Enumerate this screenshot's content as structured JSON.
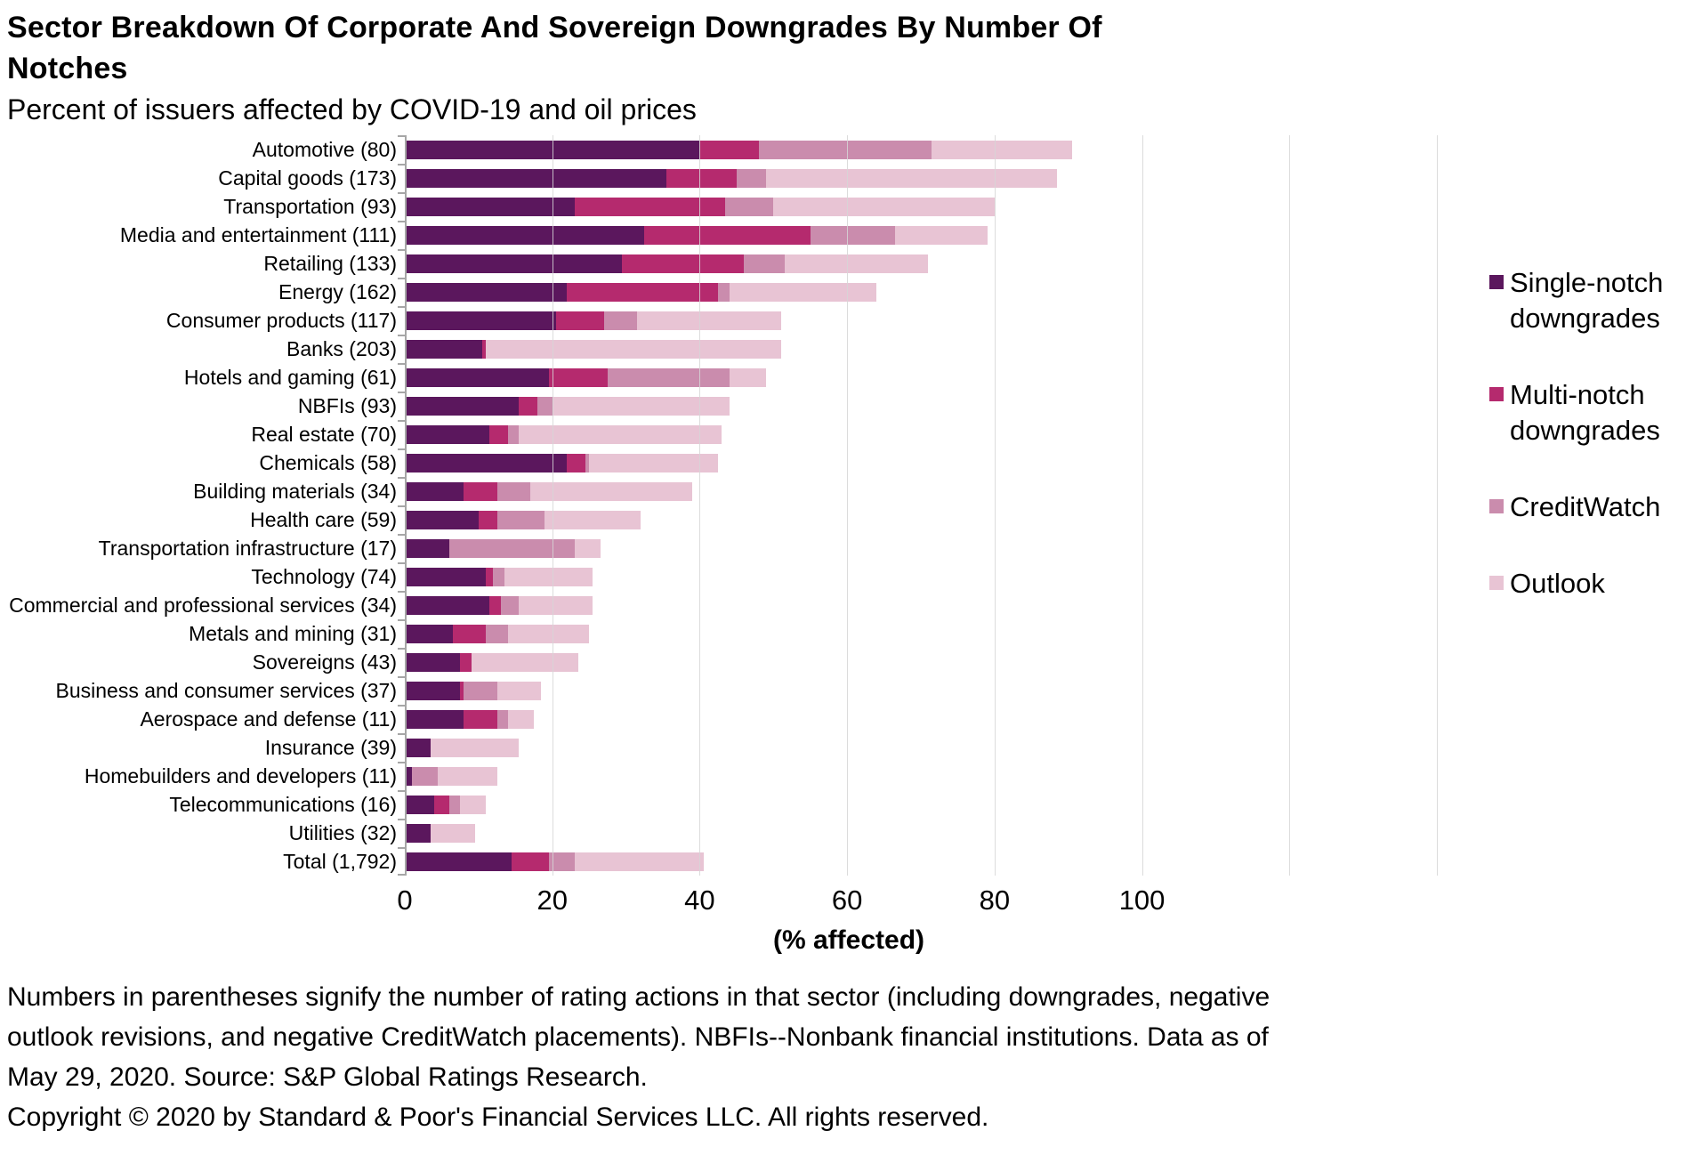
{
  "header": {
    "title_lines": [
      "Sector Breakdown Of Corporate And Sovereign Downgrades By Number Of",
      "Notches"
    ],
    "subtitle": "Percent of issuers affected by COVID-19 and oil prices"
  },
  "chart_data": {
    "type": "bar",
    "orientation": "horizontal-stacked",
    "title": "Sector Breakdown Of Corporate And Sovereign Downgrades By Number Of Notches",
    "subtitle": "Percent of issuers affected by COVID-19 and oil prices",
    "xlabel": "(% affected)",
    "ylabel": "",
    "xlim": [
      0,
      140
    ],
    "x_ticks": [
      0,
      20,
      40,
      60,
      80,
      100
    ],
    "gridlines_at": [
      20,
      40,
      60,
      80,
      100,
      120,
      140
    ],
    "grid": true,
    "legend_position": "right",
    "categories": [
      "Automotive (80)",
      "Capital goods (173)",
      "Transportation (93)",
      "Media and entertainment (111)",
      "Retailing (133)",
      "Energy (162)",
      "Consumer products (117)",
      "Banks (203)",
      "Hotels and gaming (61)",
      "NBFIs (93)",
      "Real estate (70)",
      "Chemicals (58)",
      "Building materials (34)",
      "Health care (59)",
      "Transportation infrastructure (17)",
      "Technology (74)",
      "Commercial and professional services (34)",
      "Metals and mining (31)",
      "Sovereigns (43)",
      "Business and consumer services (37)",
      "Aerospace and defense (11)",
      "Insurance (39)",
      "Homebuilders and developers (11)",
      "Telecommunications (16)",
      "Utilities (32)",
      "Total (1,792)"
    ],
    "series": [
      {
        "name": "Single-notch downgrades",
        "label_lines": [
          "Single-notch",
          "downgrades"
        ],
        "color": "#5b175d",
        "values": [
          40,
          35.5,
          23,
          32.5,
          29.5,
          22,
          20.5,
          10.5,
          19.5,
          15.5,
          11.5,
          22,
          8,
          10,
          6,
          11,
          11.5,
          6.5,
          7.5,
          7.5,
          8,
          3.5,
          1,
          4,
          3.5,
          14.5
        ]
      },
      {
        "name": "Multi-notch downgrades",
        "label_lines": [
          "Multi-notch",
          "downgrades"
        ],
        "color": "#b52a6e",
        "values": [
          8,
          9.5,
          20.5,
          22.5,
          16.5,
          20.5,
          6.5,
          0.5,
          8,
          2.5,
          2.5,
          2.5,
          4.5,
          2.5,
          0,
          1,
          1.5,
          4.5,
          1.5,
          0.5,
          4.5,
          0,
          0,
          2,
          0,
          5
        ]
      },
      {
        "name": "CreditWatch",
        "label_lines": [
          "CreditWatch"
        ],
        "color": "#ca8cad",
        "values": [
          23.5,
          4,
          6.5,
          11.5,
          5.5,
          1.5,
          4.5,
          0,
          16.5,
          2,
          1.5,
          0.5,
          4.5,
          6.5,
          17,
          1.5,
          2.5,
          3,
          0,
          4.5,
          1.5,
          0,
          3.5,
          1.5,
          0,
          3.5
        ]
      },
      {
        "name": "Outlook",
        "label_lines": [
          "Outlook"
        ],
        "color": "#e8c4d4",
        "values": [
          19,
          39.5,
          30,
          12.5,
          19.5,
          20,
          19.5,
          40,
          5,
          24,
          27.5,
          17.5,
          22,
          13,
          3.5,
          12,
          10,
          11,
          14.5,
          6,
          3.5,
          12,
          8,
          3.5,
          6,
          17.5
        ]
      }
    ]
  },
  "colors": {
    "single_notch": "#5b175d",
    "multi_notch": "#b52a6e",
    "creditwatch": "#ca8cad",
    "outlook": "#e8c4d4",
    "gridline": "#d6d6d6",
    "axis": "#a6a6a6"
  },
  "footer": {
    "note_lines": [
      "Numbers in parentheses signify the number of rating actions in that sector (including downgrades, negative",
      "outlook revisions, and negative CreditWatch placements). NBFIs--Nonbank financial institutions. Data as of",
      "May 29, 2020. Source: S&P Global Ratings Research.",
      "Copyright © 2020 by Standard & Poor's Financial Services LLC. All rights reserved."
    ]
  }
}
